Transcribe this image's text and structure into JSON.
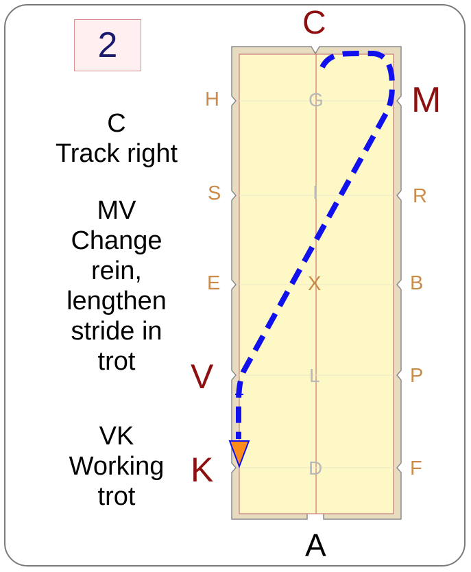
{
  "step_number": "2",
  "instructions": [
    {
      "lines": [
        "C",
        "Track right"
      ]
    },
    {
      "lines": [
        "MV",
        "Change",
        "rein,",
        "lengthen",
        "stride in",
        "trot"
      ]
    },
    {
      "lines": [
        "VK",
        "Working",
        "trot"
      ]
    }
  ],
  "arena": {
    "top_letter": "C",
    "bottom_letter": "A",
    "left_letters": [
      "H",
      "S",
      "E",
      "V",
      "K"
    ],
    "right_letters": [
      "M",
      "R",
      "B",
      "P",
      "F"
    ],
    "center_letters": [
      "G",
      "I",
      "X",
      "L",
      "D"
    ],
    "highlighted_letters": [
      "C",
      "M",
      "V",
      "K"
    ]
  },
  "colors": {
    "arena_fill": "#fdf8c6",
    "arena_border": "#e8dcc0",
    "path": "#1111ee",
    "arrow": "#ff8c1a",
    "highlight_letter": "#8e1010",
    "marker_letter": "#c98a4a",
    "center_letter": "#b8b8b8"
  }
}
